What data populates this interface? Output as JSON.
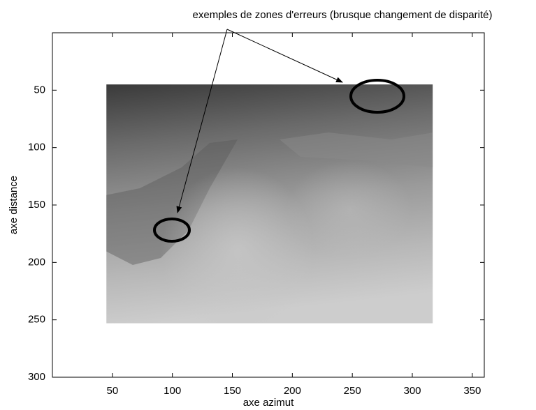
{
  "chart_data": {
    "type": "image",
    "annotation": "exemples de zones d'erreurs (brusque changement de disparité)",
    "x_label": "axe azimut",
    "y_label": "axe distance",
    "xlim": [
      0,
      360
    ],
    "ylim": [
      0,
      300
    ],
    "y_reversed": true,
    "xticks": [
      50,
      100,
      150,
      200,
      250,
      300,
      350
    ],
    "yticks": [
      50,
      100,
      150,
      200,
      250,
      300
    ],
    "image_xlim": [
      45,
      317
    ],
    "image_ylim": [
      45,
      253
    ],
    "grid": false
  }
}
